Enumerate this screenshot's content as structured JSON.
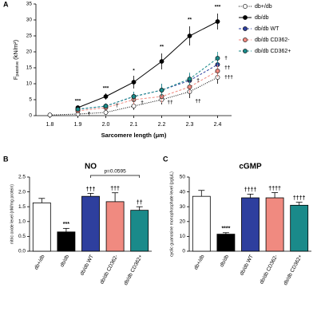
{
  "chart_data": [
    {
      "type": "scatter",
      "panel": "A",
      "x_label": "Sarcomere length (μm)",
      "y_label": "F",
      "y_label_sub": "passive",
      "y_label_unit": " (kN/m²)",
      "xlim": [
        1.75,
        2.45
      ],
      "xticks": [
        1.8,
        1.9,
        {
          "value": 2,
          "label": "2.0"
        },
        2.1,
        2.2,
        2.3,
        2.4
      ],
      "ylim": [
        0,
        35
      ],
      "yticks": [
        0,
        5,
        10,
        15,
        20,
        25,
        30,
        35
      ],
      "x": [
        1.8,
        1.9,
        2.0,
        2.1,
        2.2,
        2.3,
        2.4
      ],
      "legend": "right",
      "series": [
        {
          "name": "db+/db",
          "color": "#000000",
          "marker": "open",
          "line_style": "dotted",
          "values": [
            0.2,
            0.5,
            1,
            3,
            5,
            7.5,
            12
          ],
          "errors": [
            0.3,
            0.4,
            0.6,
            1.2,
            1.5,
            2,
            2
          ]
        },
        {
          "name": "db/db",
          "color": "#000000",
          "marker": "filled",
          "line_style": "solid",
          "values": [
            null,
            2.5,
            6,
            10.5,
            17,
            25,
            29.5
          ],
          "errors": [
            null,
            0.6,
            1,
            2,
            2.5,
            3,
            2.5
          ]
        },
        {
          "name": "db/db WT",
          "color": "#2e3f9e",
          "marker": "filled",
          "line_style": "dashed",
          "values": [
            null,
            2,
            3,
            6,
            8,
            11,
            16
          ],
          "errors": [
            null,
            0.5,
            0.8,
            1.5,
            2,
            2,
            2
          ]
        },
        {
          "name": "db/db CD362-",
          "color": "#f08a80",
          "marker": "filled",
          "line_style": "dashed",
          "values": [
            null,
            1.5,
            2.5,
            5,
            6,
            9,
            14
          ],
          "errors": [
            null,
            0.5,
            0.8,
            1.5,
            2,
            2,
            2
          ]
        },
        {
          "name": "db/db CD362+",
          "color": "#1a8a8a",
          "marker": "filled",
          "line_style": "dashed",
          "values": [
            null,
            2,
            3,
            6,
            8,
            11.5,
            18
          ],
          "errors": [
            null,
            0.5,
            0.8,
            1.5,
            2,
            2,
            2
          ]
        }
      ],
      "annotations": [
        {
          "text": "***",
          "x": 1.9,
          "y": 4.5
        },
        {
          "text": "***",
          "x": 2.0,
          "y": 8.5
        },
        {
          "text": "*",
          "x": 2.1,
          "y": 14
        },
        {
          "text": "**",
          "x": 2.2,
          "y": 21.5
        },
        {
          "text": "**",
          "x": 2.3,
          "y": 30
        },
        {
          "text": "***",
          "x": 2.4,
          "y": 34
        },
        {
          "text": "†",
          "x": 1.94,
          "y": 0.5
        },
        {
          "text": "†",
          "x": 2.04,
          "y": 3.2
        },
        {
          "text": "†",
          "x": 2.13,
          "y": 4
        },
        {
          "text": "††",
          "x": 2.23,
          "y": 4.2
        },
        {
          "text": "††",
          "x": 2.33,
          "y": 4.5
        },
        {
          "text": "†",
          "x": 2.33,
          "y": 11
        },
        {
          "text": "†",
          "x": 2.43,
          "y": 18
        },
        {
          "text": "††",
          "x": 2.435,
          "y": 15
        },
        {
          "text": "†††",
          "x": 2.44,
          "y": 12
        }
      ]
    },
    {
      "type": "bar",
      "panel": "B",
      "title": "NO",
      "y_label": "nitric oxide level (nM/mg protein)",
      "categories": [
        "db+/db",
        "db/db",
        "db/db WT",
        "db/db CD362-",
        "db/db CD362+"
      ],
      "values": [
        1.63,
        0.65,
        1.85,
        1.67,
        1.38
      ],
      "errors": [
        0.15,
        0.12,
        0.1,
        0.3,
        0.12
      ],
      "colors": [
        "#ffffff",
        "#000000",
        "#2e3f9e",
        "#f08a80",
        "#1a8a8a"
      ],
      "ylim": [
        0,
        2.5
      ],
      "yticks": [
        {
          "value": 0,
          "label": "0.0"
        },
        0.5,
        {
          "value": 1,
          "label": "1.0"
        },
        1.5,
        {
          "value": 2,
          "label": "2.0"
        },
        2.5
      ],
      "significance": [
        null,
        "***",
        "†††",
        "†††",
        "††"
      ],
      "bracket": {
        "label": "p=0.0595",
        "categories": [
          "db/db WT",
          "db/db CD362+"
        ]
      }
    },
    {
      "type": "bar",
      "panel": "C",
      "title": "cGMP",
      "y_label": "cyclic guanosine monophosphate level (pg/μL)",
      "categories": [
        "db+/db",
        "db/db",
        "db/db WT",
        "db/db CD362-",
        "db/db CD362+"
      ],
      "values": [
        37,
        11.5,
        36,
        36,
        31
      ],
      "errors": [
        4,
        1,
        2.5,
        3.5,
        2
      ],
      "colors": [
        "#ffffff",
        "#000000",
        "#2e3f9e",
        "#f08a80",
        "#1a8a8a"
      ],
      "ylim": [
        0,
        50
      ],
      "yticks": [
        0,
        10,
        20,
        30,
        40,
        50
      ],
      "significance": [
        null,
        "****",
        "††††",
        "††††",
        "††††"
      ]
    }
  ]
}
